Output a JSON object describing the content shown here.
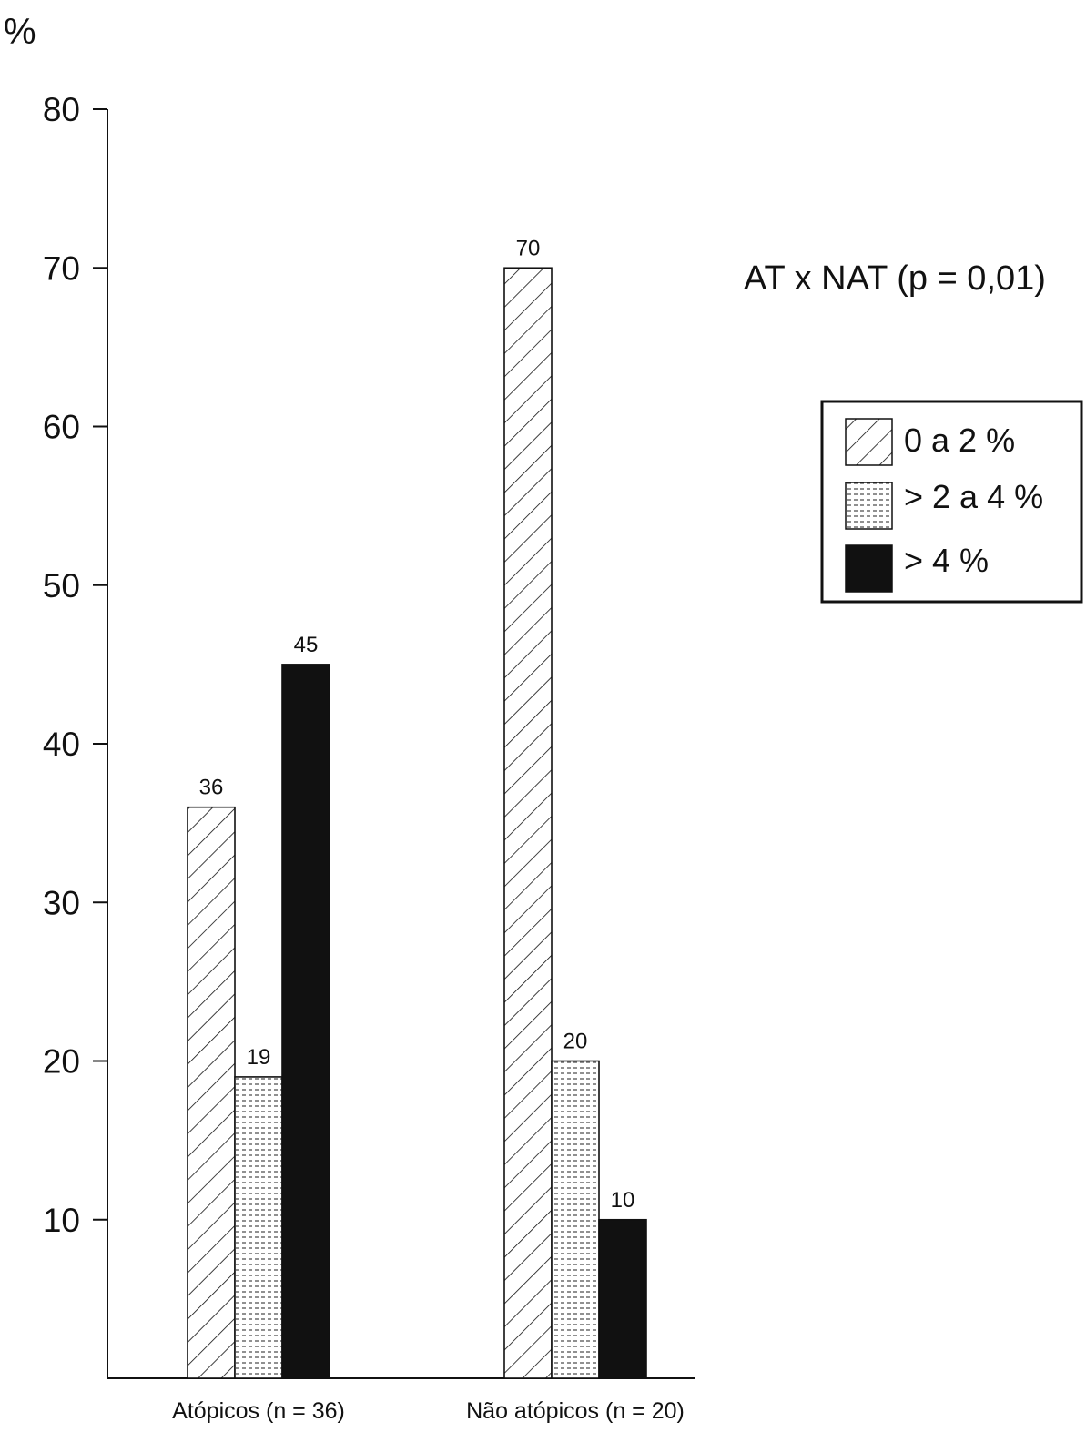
{
  "chart_data": {
    "type": "bar",
    "ylabel": "%",
    "ylim": [
      0,
      80
    ],
    "yticks": [
      10,
      20,
      30,
      40,
      50,
      60,
      70,
      80
    ],
    "categories": [
      "Atópicos (n = 36)",
      "Não atópicos (n = 20)"
    ],
    "series": [
      {
        "name": "0 a 2 %",
        "values": [
          36,
          70
        ],
        "pattern": "diagonal-hatch",
        "color": "#ffffff"
      },
      {
        "name": "> 2 a 4 %",
        "values": [
          19,
          20
        ],
        "pattern": "dotted",
        "color": "#ffffff"
      },
      {
        "name": "> 4 %",
        "values": [
          45,
          10
        ],
        "pattern": "solid",
        "color": "#111111"
      }
    ],
    "data_labels": [
      [
        "36",
        "70"
      ],
      [
        "19",
        "20"
      ],
      [
        "45",
        "10"
      ]
    ],
    "annotation": "AT x NAT (p = 0,01)",
    "legend_position": "right",
    "grid": false
  }
}
